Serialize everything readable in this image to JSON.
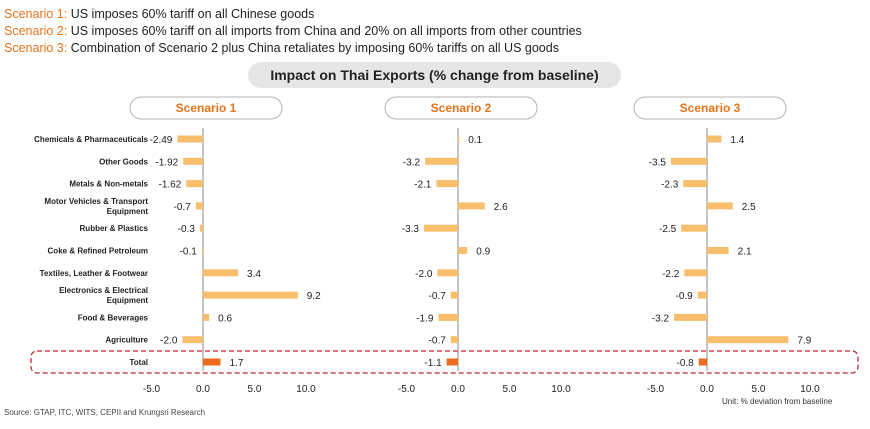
{
  "header": {
    "scenarios": [
      {
        "key": "Scenario 1:",
        "text": " US imposes 60% tariff on all Chinese goods"
      },
      {
        "key": "Scenario 2:",
        "text": " US imposes 60% tariff on all imports from China and 20% on all imports from other countries"
      },
      {
        "key": "Scenario 3:",
        "text": " Combination of Scenario 2 plus China retaliates by imposing 60% tariffs on all US goods"
      }
    ]
  },
  "chart_data": {
    "type": "bar",
    "orientation": "horizontal",
    "title": "Impact on Thai Exports (% change from baseline)",
    "categories": [
      "Chemicals & Pharmaceuticals",
      "Other Goods",
      "Metals & Non-metals",
      "Motor Vehicles & Transport Equipment",
      "Rubber & Plastics",
      "Coke & Refined Petroleum",
      "Textiles, Leather & Footwear",
      "Electronics & Electrical Equipment",
      "Food & Beverages",
      "Agriculture",
      "Total"
    ],
    "category_lines": [
      [
        "Chemicals & Pharmaceuticals"
      ],
      [
        "Other Goods"
      ],
      [
        "Metals & Non-metals"
      ],
      [
        "Motor Vehicles & Transport",
        "Equipment"
      ],
      [
        "Rubber & Plastics"
      ],
      [
        "Coke & Refined Petroleum"
      ],
      [
        "Textiles, Leather & Footwear"
      ],
      [
        "Electronics & Electrical",
        "Equipment"
      ],
      [
        "Food & Beverages"
      ],
      [
        "Agriculture"
      ],
      [
        "Total"
      ]
    ],
    "series": [
      {
        "name": "Scenario 1",
        "values": [
          -2.49,
          -1.92,
          -1.62,
          -0.7,
          -0.3,
          -0.1,
          3.4,
          9.2,
          0.6,
          -2.0,
          1.7
        ],
        "labels": [
          "-2.49",
          "-1.92",
          "-1.62",
          "-0.7",
          "-0.3",
          "-0.1",
          "3.4",
          "9.2",
          "0.6",
          "-2.0",
          "1.7"
        ]
      },
      {
        "name": "Scenario 2",
        "values": [
          0.1,
          -3.2,
          -2.1,
          2.6,
          -3.3,
          0.9,
          -2.0,
          -0.7,
          -1.9,
          -0.7,
          -1.1
        ],
        "labels": [
          "0.1",
          "-3.2",
          "-2.1",
          "2.6",
          "-3.3",
          "0.9",
          "-2.0",
          "-0.7",
          "-1.9",
          "-0.7",
          "-1.1"
        ]
      },
      {
        "name": "Scenario 3",
        "values": [
          1.4,
          -3.5,
          -2.3,
          2.5,
          -2.5,
          2.1,
          -2.2,
          -0.9,
          -3.2,
          7.9,
          -0.8
        ],
        "labels": [
          "1.4",
          "-3.5",
          "-2.3",
          "2.5",
          "-2.5",
          "2.1",
          "-2.2",
          "-0.9",
          "-3.2",
          "7.9",
          "-0.8"
        ]
      }
    ],
    "xticks": [
      "-5.0",
      "0.0",
      "5.0",
      "10.0"
    ],
    "xtick_values": [
      -5,
      0,
      5,
      10
    ],
    "xlim": [
      -5,
      10
    ],
    "colors": {
      "bar": "#F7BE6B",
      "total_bar": "#EE6A1E",
      "axis": "#888888",
      "highlight_border": "#C0282D",
      "title_pill": "#E6E6E6",
      "scenario_text": "#E8731A"
    },
    "highlight": "Total"
  },
  "footer": {
    "source": "Source: GTAP, ITC, WITS, CEPII and Krungsri Research",
    "unit": "Unit: % deviation from baseline"
  }
}
